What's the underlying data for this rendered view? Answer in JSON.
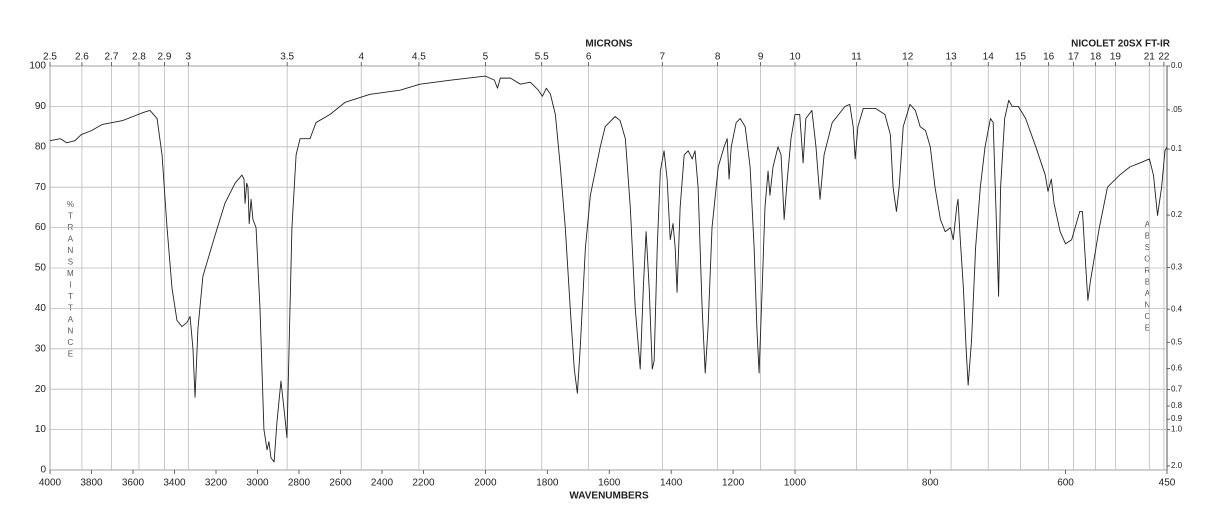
{
  "chart_data": {
    "type": "line",
    "x_label": "WAVENUMBERS",
    "x2_label": "MICRONS",
    "y_label": "%TRANSMITTANCE",
    "y2_label": "ABSORBANCE",
    "instrument": "NICOLET 20SX FT-IR",
    "color": "#222222",
    "grid": true,
    "xlim": [
      4000,
      450
    ],
    "xticks": [
      4000,
      3800,
      3600,
      3400,
      3200,
      3000,
      2800,
      2600,
      2400,
      2200,
      2000,
      1800,
      1600,
      1400,
      1200,
      1000,
      800,
      600,
      450
    ],
    "x2ticks": [
      2.5,
      2.6,
      2.7,
      2.8,
      2.9,
      3,
      3.5,
      4,
      4.5,
      5,
      5.5,
      6,
      7,
      8,
      9,
      10,
      11,
      12,
      13,
      14,
      15,
      16,
      17,
      18,
      19,
      21,
      22
    ],
    "ylim": [
      0,
      100
    ],
    "yticks": [
      0,
      10,
      20,
      30,
      40,
      50,
      60,
      70,
      80,
      90,
      100
    ],
    "y2ticks": [
      {
        "value": 0,
        "label": "0.0"
      },
      {
        "value": 0.05,
        "label": ".05"
      },
      0.1,
      0.2,
      0.3,
      0.4,
      0.5,
      0.6,
      0.7,
      0.8,
      0.9,
      {
        "value": 1,
        "label": "1.0"
      },
      {
        "value": 2,
        "label": "2.0"
      }
    ],
    "x": [
      4000,
      3950,
      3920,
      3880,
      3850,
      3800,
      3750,
      3700,
      3650,
      3600,
      3550,
      3518,
      3484,
      3460,
      3436,
      3412,
      3388,
      3364,
      3340,
      3325,
      3311,
      3301,
      3287,
      3263,
      3205,
      3157,
      3108,
      3075,
      3065,
      3060,
      3052,
      3046,
      3040,
      3031,
      3022,
      3007,
      2988,
      2969,
      2954,
      2945,
      2935,
      2920,
      2906,
      2887,
      2872,
      2858,
      2848,
      2834,
      2814,
      2795,
      2747,
      2718,
      2651,
      2578,
      2458,
      2313,
      2217,
      2113,
      2000,
      1971,
      1961,
      1952,
      1919,
      1887,
      1855,
      1829,
      1816,
      1803,
      1790,
      1774,
      1758,
      1742,
      1726,
      1713,
      1703,
      1694,
      1677,
      1661,
      1629,
      1613,
      1581,
      1565,
      1548,
      1532,
      1516,
      1500,
      1490,
      1481,
      1471,
      1461,
      1455,
      1445,
      1435,
      1423,
      1413,
      1403,
      1394,
      1387,
      1381,
      1371,
      1358,
      1345,
      1332,
      1323,
      1313,
      1300,
      1290,
      1281,
      1268,
      1248,
      1229,
      1219,
      1213,
      1206,
      1190,
      1177,
      1161,
      1145,
      1132,
      1123,
      1116,
      1106,
      1097,
      1087,
      1081,
      1071,
      1055,
      1045,
      1035,
      1026,
      1013,
      1000,
      993,
      988,
      984,
      975,
      969,
      963,
      957,
      945,
      926,
      919,
      914,
      911,
      907,
      899,
      881,
      867,
      859,
      855,
      850,
      846,
      840,
      830,
      822,
      815,
      807,
      800,
      793,
      785,
      778,
      770,
      766,
      761,
      759,
      756,
      751,
      747,
      744,
      739,
      733,
      726,
      719,
      711,
      707,
      702,
      699,
      696,
      690,
      684,
      679,
      670,
      659,
      644,
      630,
      626,
      621,
      617,
      608,
      600,
      591,
      579,
      575,
      570,
      567,
      563,
      550,
      538,
      520,
      505,
      490,
      476,
      470,
      464,
      458,
      453,
      450
    ],
    "values": [
      81.5,
      82,
      81,
      81.5,
      83,
      84,
      85.5,
      86,
      86.5,
      87.5,
      88.5,
      89,
      87,
      78,
      60,
      45,
      37,
      35.5,
      36.5,
      38,
      30,
      18,
      35,
      48,
      58,
      66,
      71,
      73,
      72,
      66,
      71,
      70,
      61,
      67,
      62,
      60,
      40,
      10,
      5,
      7,
      3,
      2,
      12,
      22,
      15,
      8,
      30,
      60,
      78,
      82,
      82,
      86,
      88,
      91,
      93,
      94,
      95.5,
      96.5,
      97.5,
      96.5,
      94.5,
      97,
      97,
      95.5,
      96,
      94,
      92.5,
      94.5,
      93,
      88,
      75,
      60,
      40,
      25,
      19,
      30,
      55,
      68,
      80,
      85,
      87.5,
      86.5,
      82,
      65,
      40,
      25,
      45,
      59,
      45,
      25,
      27,
      55,
      74,
      79,
      72,
      57,
      61,
      55,
      44,
      65,
      78,
      79,
      77,
      79,
      70,
      40,
      24,
      35,
      60,
      75,
      80,
      82,
      72,
      80,
      86,
      87,
      85,
      75,
      55,
      35,
      24,
      45,
      65,
      74,
      68,
      75,
      80,
      78,
      62,
      71,
      82,
      88,
      88,
      76,
      87,
      89,
      80,
      67,
      78,
      86,
      90,
      90.5,
      85,
      77,
      85,
      89.5,
      89.5,
      88,
      83,
      70,
      64,
      70,
      85,
      90.5,
      89,
      85,
      84,
      80,
      70,
      62,
      59,
      60,
      57,
      65,
      67,
      58,
      45,
      30,
      21,
      32,
      55,
      70,
      80,
      87,
      86,
      60,
      43,
      70,
      87,
      91.5,
      90,
      90,
      87,
      80,
      73,
      69,
      72,
      66,
      59,
      56,
      57,
      64,
      64,
      50,
      42,
      47,
      60,
      70,
      73,
      75,
      76,
      77,
      73,
      63,
      70,
      79,
      80
    ]
  }
}
